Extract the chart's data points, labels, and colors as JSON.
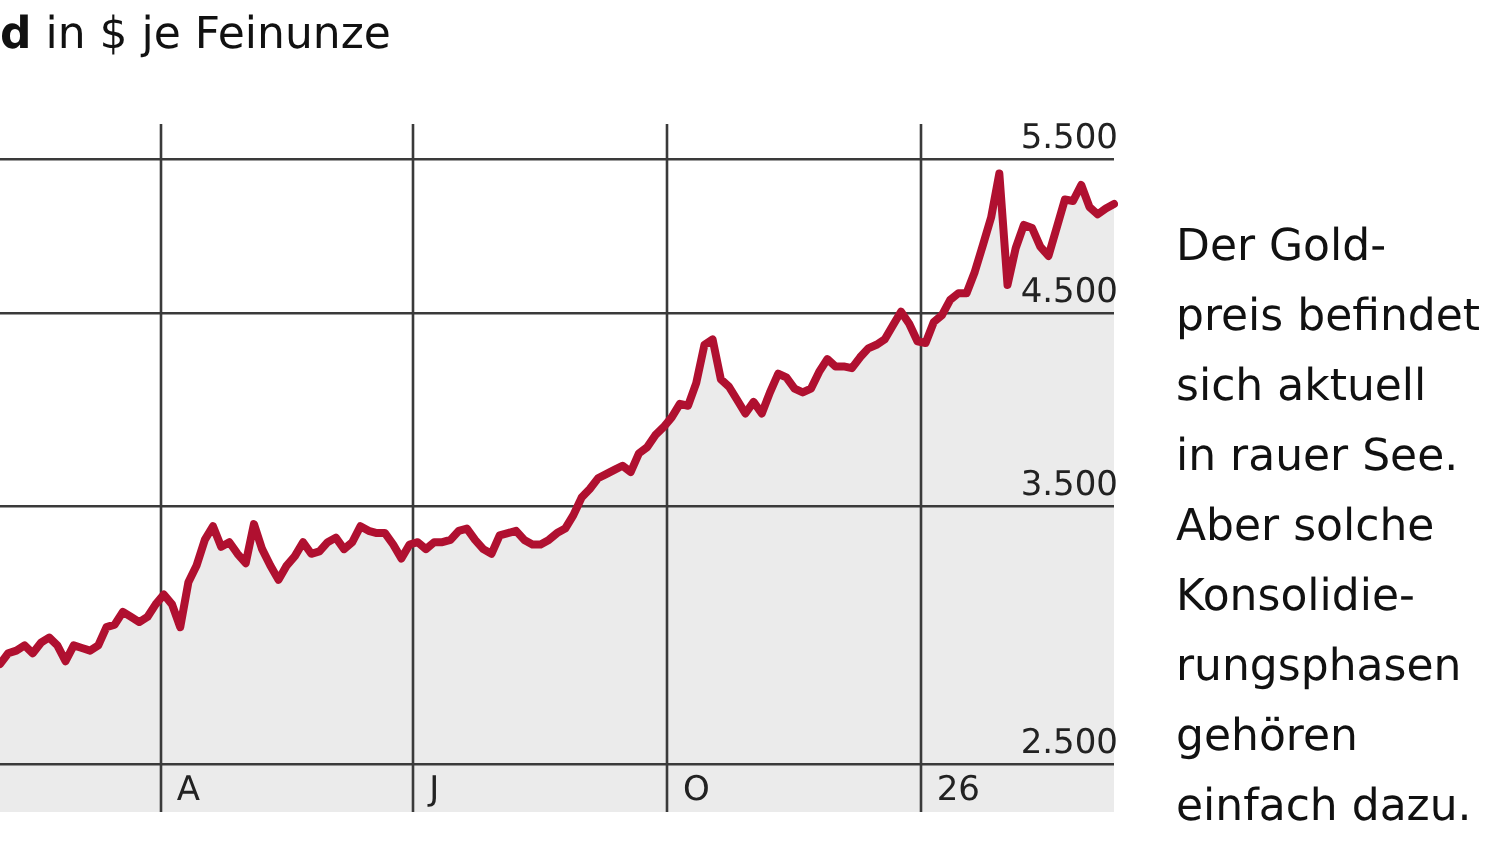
{
  "chart_data": {
    "type": "area",
    "title": "d in $ je Feinunze",
    "annotations": [
      "Der Gold-\npreis befindet\nsich aktuell\nin rauer See.\nAber solche\nKonsolidie-\nrungsphasen\ngehören\neinfach dazu."
    ],
    "log": true,
    "grid": true,
    "categories": [
      null,
      null,
      null,
      null,
      null,
      null,
      null,
      null,
      null,
      null,
      null,
      null,
      null,
      null,
      null,
      null,
      null,
      null,
      null,
      null,
      null,
      null,
      null,
      "A",
      null,
      null,
      null,
      null,
      null,
      null,
      null,
      null,
      null,
      null,
      null,
      null,
      null,
      null,
      null,
      null,
      null,
      null,
      null,
      null,
      null,
      null,
      null,
      null,
      null,
      null,
      null,
      null,
      null,
      "J",
      null,
      null,
      null,
      null,
      null,
      null,
      null,
      null,
      null,
      null,
      null,
      null,
      null,
      null,
      null,
      null,
      null,
      null,
      null,
      null,
      null,
      null,
      null,
      null,
      null,
      null,
      null,
      null,
      null,
      null,
      null,
      "O",
      null,
      null,
      null,
      null,
      null,
      null,
      null,
      null,
      null,
      null,
      null,
      null,
      null,
      null,
      null,
      null,
      null,
      null,
      null,
      null,
      null,
      null,
      null,
      null,
      null,
      null,
      null,
      null,
      null,
      null,
      null,
      "26",
      null,
      null,
      null,
      null,
      null,
      null,
      null,
      null,
      null,
      null,
      null,
      null,
      null,
      null,
      null,
      null,
      null,
      null,
      null
    ],
    "ylim": [
      2350,
      5760
    ],
    "yticks": [
      {
        "value": 2500,
        "label": "2.500"
      },
      {
        "value": 3500,
        "label": "3.500"
      },
      {
        "value": 4500,
        "label": "4.500"
      },
      {
        "value": 5500,
        "label": "5.500"
      }
    ],
    "series": [
      {
        "color": "#ebebeb",
        "values": [
          2850,
          2890,
          2900,
          2920,
          2890,
          2930,
          2950,
          2920,
          2860,
          2920,
          2910,
          2900,
          2920,
          2990,
          3000,
          3050,
          3030,
          3010,
          3030,
          3080,
          3120,
          3080,
          2990,
          3170,
          3240,
          3350,
          3410,
          3320,
          3340,
          3290,
          3250,
          3420,
          3310,
          3240,
          3180,
          3240,
          3280,
          3340,
          3290,
          3300,
          3340,
          3360,
          3310,
          3340,
          3410,
          3390,
          3380,
          3380,
          3330,
          3270,
          3330,
          3340,
          3310,
          3340,
          3340,
          3350,
          3390,
          3400,
          3350,
          3310,
          3290,
          3370,
          3380,
          3390,
          3350,
          3330,
          3330,
          3350,
          3380,
          3400,
          3460,
          3540,
          3580,
          3630,
          3650,
          3670,
          3690,
          3660,
          3750,
          3780,
          3840,
          3880,
          3930,
          4000,
          3990,
          4110,
          4320,
          4350,
          4130,
          4090,
          4020,
          3950,
          4010,
          3950,
          4060,
          4160,
          4140,
          4080,
          4060,
          4080,
          4170,
          4240,
          4200,
          4200,
          4190,
          4250,
          4300,
          4320,
          4350,
          4430,
          4510,
          4440,
          4340,
          4330,
          4450,
          4490,
          4580,
          4620,
          4620,
          4750,
          4920,
          5100,
          5400,
          4670,
          4900,
          5050,
          5030,
          4910,
          4850,
          5030,
          5220,
          5210,
          5320,
          5170,
          5120,
          5160,
          5190
        ]
      }
    ]
  }
}
